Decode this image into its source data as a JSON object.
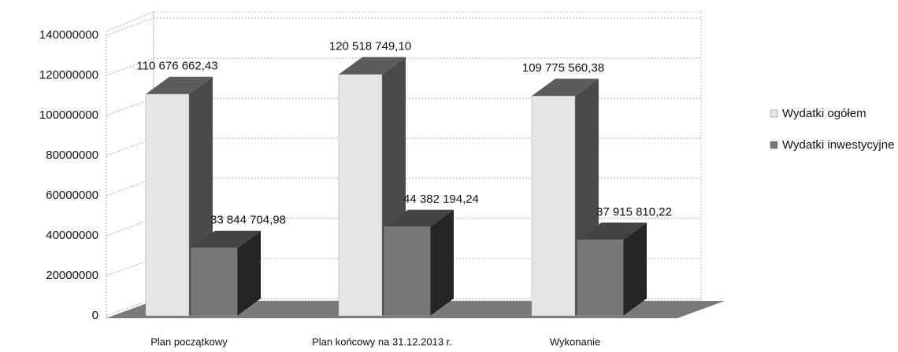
{
  "chart_data": {
    "type": "bar3d",
    "categories": [
      "Plan początkowy",
      "Plan końcowy  na 31.12.2013 r.",
      "Wykonanie"
    ],
    "series": [
      {
        "name": "Wydatki ogółem",
        "color": "#e6e6e6",
        "values": [
          110676662.43,
          120518749.1,
          109775560.38
        ],
        "value_labels": [
          "110 676 662,43",
          "120 518 749,10",
          "109 775 560,38"
        ]
      },
      {
        "name": "Wydatki inwestycyjne",
        "color": "#767676",
        "values": [
          33844704.98,
          44382194.24,
          37915810.22
        ],
        "value_labels": [
          "33 844 704,98",
          "44 382 194,24",
          "37 915 810,22"
        ]
      }
    ],
    "ylim": [
      0,
      140000000
    ],
    "yticks": [
      0,
      20000000,
      40000000,
      60000000,
      80000000,
      100000000,
      120000000,
      140000000
    ],
    "grid": true,
    "legend": "right"
  }
}
